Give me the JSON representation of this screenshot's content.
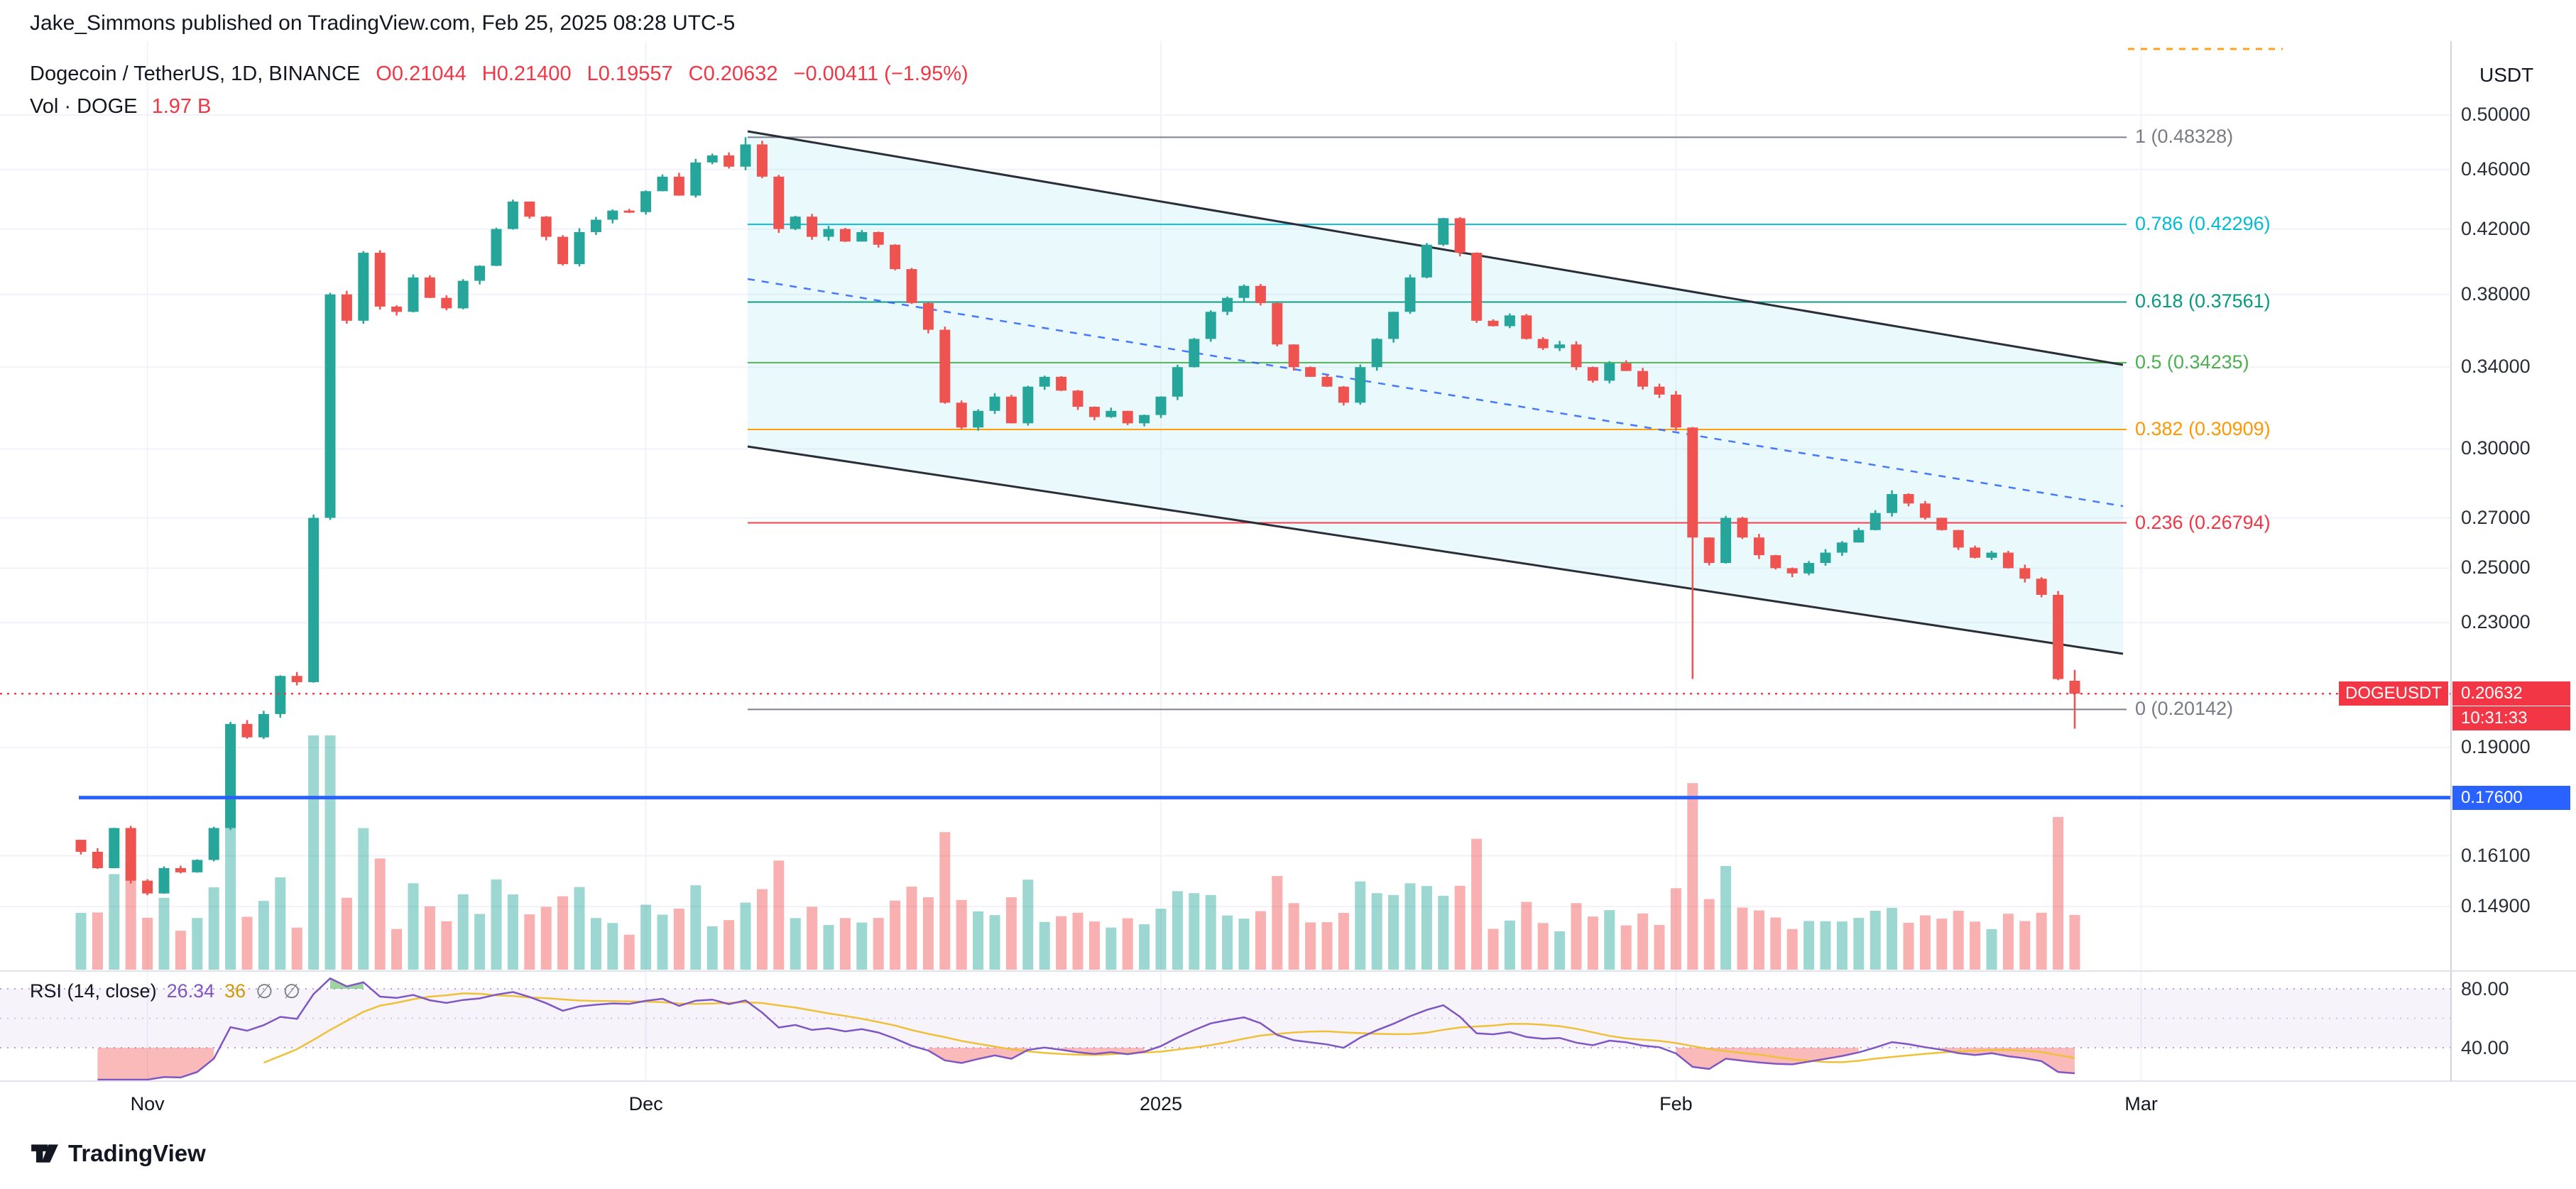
{
  "attribution": "Jake_Simmons published on TradingView.com, Feb 25, 2025 08:28 UTC-5",
  "header": {
    "symbol_line": "Dogecoin / TetherUS, 1D, BINANCE",
    "ohlc": {
      "o": "O0.21044",
      "h": "H0.21400",
      "l": "L0.19557",
      "c": "C0.20632",
      "change": "−0.00411 (−1.95%)"
    },
    "volume_label": "Vol · DOGE",
    "volume_value": "1.97 B"
  },
  "price_axis": {
    "currency": "USDT",
    "labels": [
      "0.50000",
      "0.46000",
      "0.42000",
      "0.38000",
      "0.34000",
      "0.30000",
      "0.27000",
      "0.25000",
      "0.23000",
      "0.19000",
      "0.16100",
      "0.14900"
    ],
    "last_price_badge": {
      "symbol": "DOGEUSDT",
      "price": "0.20632",
      "countdown": "10:31:33"
    },
    "support_badge": {
      "price": "0.17600"
    }
  },
  "fib": {
    "levels": [
      {
        "label": "1 (0.48328)",
        "value": 0.48328,
        "color": "#787b86"
      },
      {
        "label": "0.786 (0.42296)",
        "value": 0.42296,
        "color": "#00bcd4"
      },
      {
        "label": "0.618 (0.37561)",
        "value": 0.37561,
        "color": "#089981"
      },
      {
        "label": "0.5 (0.34235)",
        "value": 0.34235,
        "color": "#4caf50"
      },
      {
        "label": "0.382 (0.30909)",
        "value": 0.30909,
        "color": "#ff9800"
      },
      {
        "label": "0.236 (0.26794)",
        "value": 0.26794,
        "color": "#f23645"
      },
      {
        "label": "0 (0.20142)",
        "value": 0.20142,
        "color": "#787b86"
      }
    ]
  },
  "rsi": {
    "legend": "RSI (14, close)",
    "value": "26.34",
    "ma_value": "36",
    "upper": "80.00",
    "lower": "40.00"
  },
  "time_axis": {
    "labels": [
      {
        "label": "Nov",
        "day": 4
      },
      {
        "label": "Dec",
        "day": 34
      },
      {
        "label": "2025",
        "day": 65
      },
      {
        "label": "Feb",
        "day": 96
      },
      {
        "label": "Mar",
        "day": 124
      }
    ]
  },
  "footer": {
    "logo_text": "TradingView"
  },
  "colors": {
    "up": "#26a69a",
    "down": "#ef5350",
    "accent_blue": "#2962ff",
    "accent_red": "#f23645",
    "rsi_line": "#7e57c2",
    "rsi_ma": "#f0c038",
    "channel": "#2a2e39"
  },
  "chart_data": {
    "type": "candlestick",
    "symbol": "DOGEUSDT",
    "exchange": "BINANCE",
    "interval": "1D",
    "scale": "log",
    "start_date": "2024-10-28",
    "y_axis_range": [
      0.143,
      0.52
    ],
    "closes": [
      0.162,
      0.158,
      0.168,
      0.155,
      0.152,
      0.158,
      0.157,
      0.16,
      0.168,
      0.197,
      0.193,
      0.2,
      0.212,
      0.21,
      0.27,
      0.38,
      0.365,
      0.405,
      0.373,
      0.37,
      0.39,
      0.378,
      0.372,
      0.388,
      0.397,
      0.42,
      0.438,
      0.428,
      0.415,
      0.398,
      0.418,
      0.426,
      0.432,
      0.431,
      0.445,
      0.455,
      0.442,
      0.465,
      0.47,
      0.462,
      0.478,
      0.455,
      0.42,
      0.428,
      0.415,
      0.42,
      0.412,
      0.418,
      0.41,
      0.395,
      0.375,
      0.36,
      0.322,
      0.31,
      0.318,
      0.325,
      0.312,
      0.33,
      0.335,
      0.328,
      0.32,
      0.315,
      0.318,
      0.312,
      0.316,
      0.325,
      0.34,
      0.355,
      0.37,
      0.378,
      0.385,
      0.375,
      0.352,
      0.34,
      0.335,
      0.33,
      0.322,
      0.34,
      0.355,
      0.37,
      0.39,
      0.41,
      0.427,
      0.405,
      0.365,
      0.362,
      0.368,
      0.355,
      0.35,
      0.352,
      0.34,
      0.333,
      0.342,
      0.338,
      0.33,
      0.326,
      0.31,
      0.262,
      0.252,
      0.27,
      0.262,
      0.255,
      0.25,
      0.248,
      0.252,
      0.256,
      0.26,
      0.265,
      0.272,
      0.28,
      0.276,
      0.27,
      0.265,
      0.258,
      0.254,
      0.256,
      0.25,
      0.246,
      0.24,
      0.211,
      0.20632
    ],
    "last_candle": {
      "open": 0.21044,
      "high": 0.214,
      "low": 0.19557,
      "close": 0.20632
    },
    "special_points": {
      "fib_high_touch_index": 40,
      "long_lower_wick_index": 97,
      "long_lower_wick_low": 0.211
    },
    "total_volume_display": "1.97 B",
    "levels": {
      "current_price": 0.20632,
      "support_line": 0.176,
      "fib_high": 0.48328,
      "fib_low": 0.20142
    },
    "rsi_current": 26.34,
    "title": "Dogecoin / TetherUS, 1D, BINANCE"
  }
}
